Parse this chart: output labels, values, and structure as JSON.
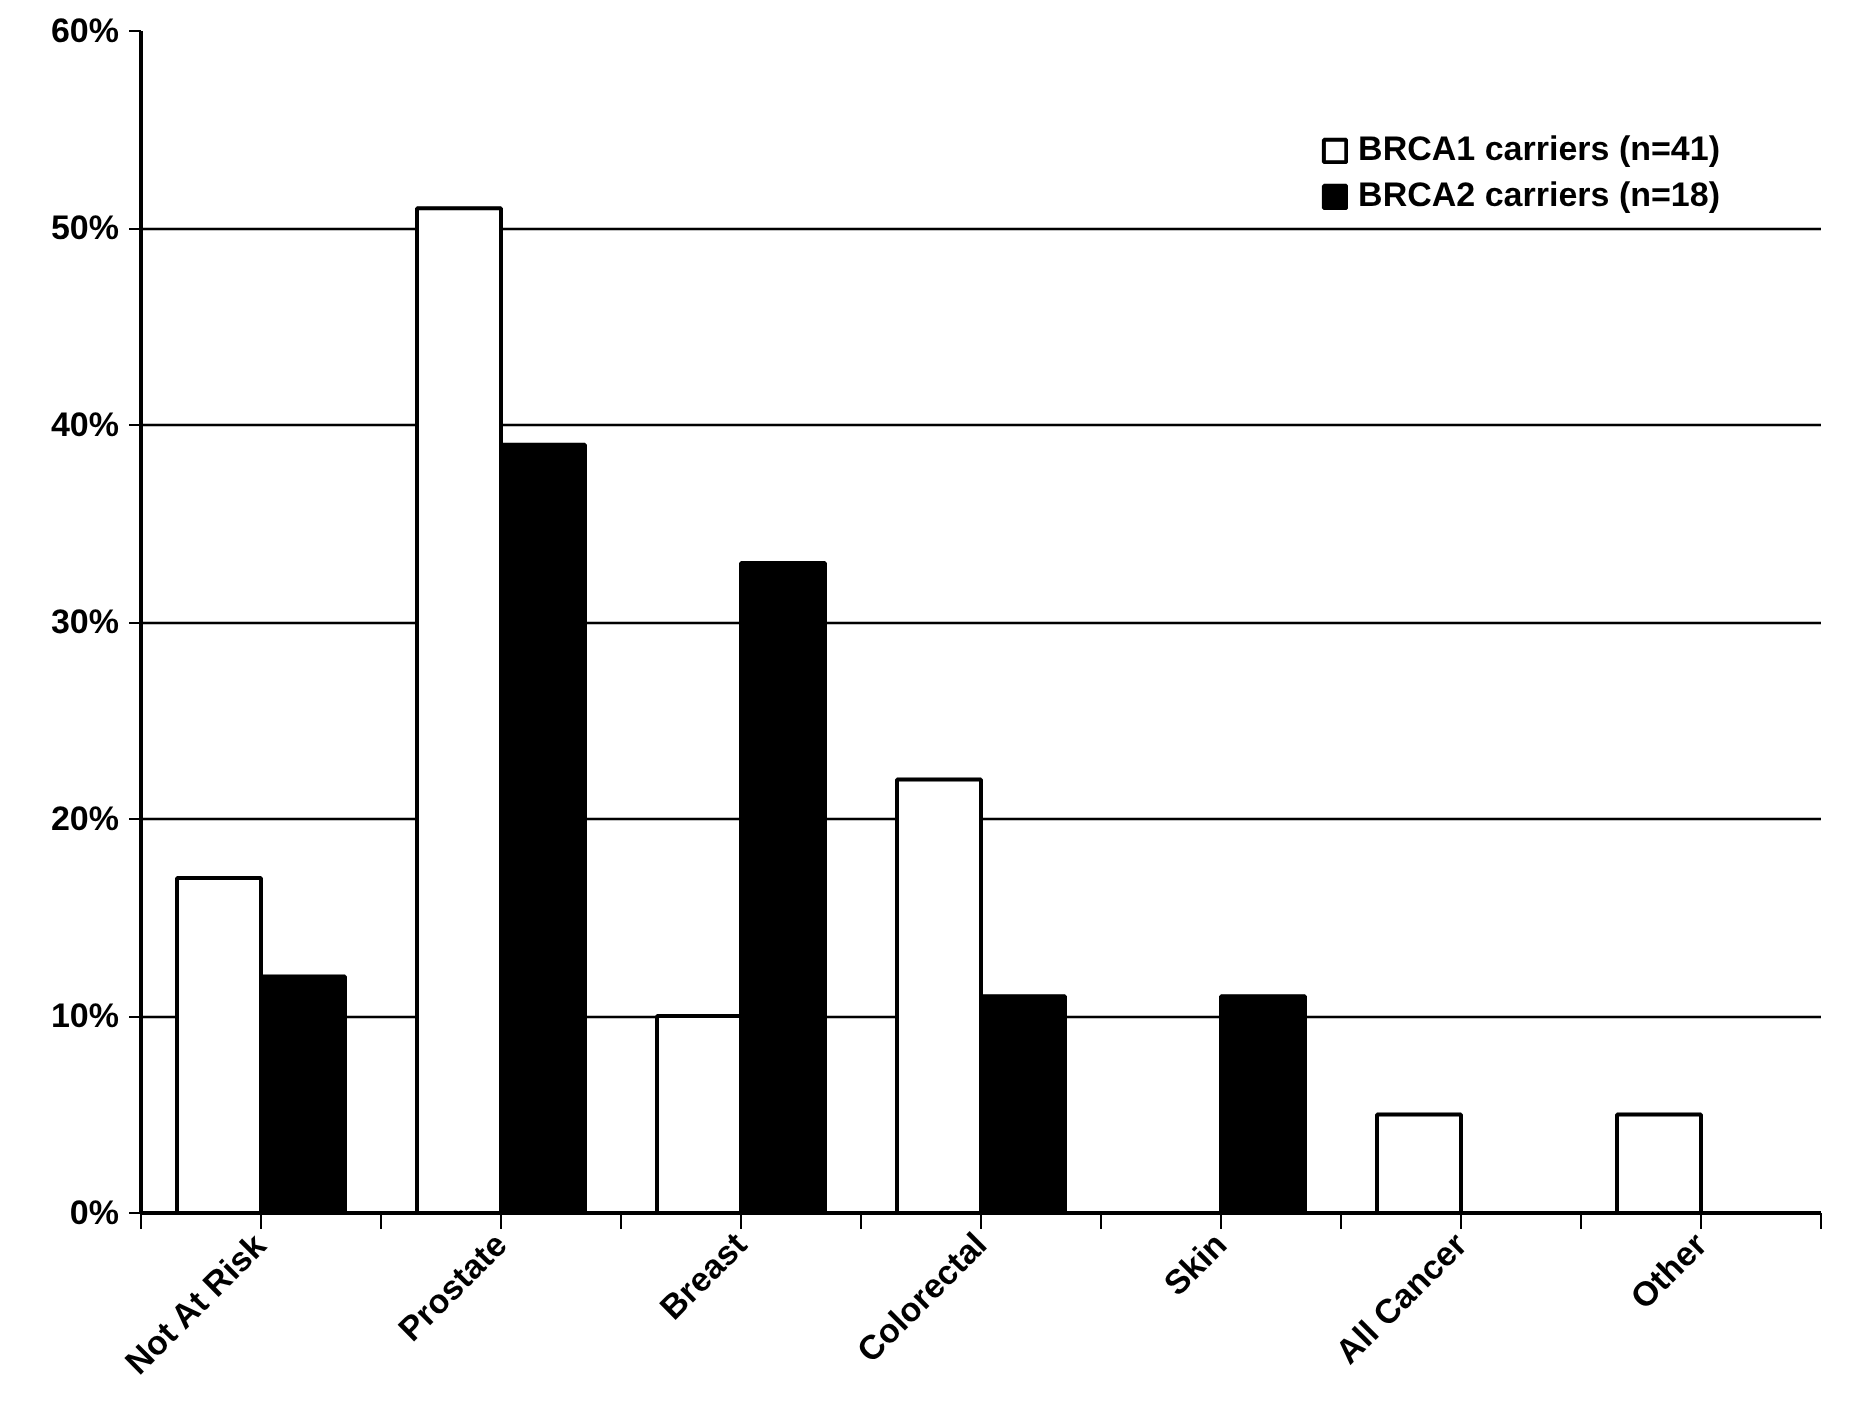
{
  "chart_data": {
    "type": "bar",
    "categories": [
      "Not At Risk",
      "Prostate",
      "Breast",
      "Colorectal",
      "Skin",
      "All Cancer",
      "Other"
    ],
    "series": [
      {
        "name": "BRCA1 carriers (n=41)",
        "color": "#ffffff",
        "values": [
          17,
          51,
          10,
          22,
          0,
          5,
          5
        ]
      },
      {
        "name": "BRCA2 carriers (n=18)",
        "color": "#000000",
        "values": [
          12,
          39,
          33,
          11,
          11,
          0,
          0
        ]
      }
    ],
    "ylim": [
      0,
      60
    ],
    "yticks": [
      {
        "value": 0,
        "label": "0%"
      },
      {
        "value": 10,
        "label": "10%"
      },
      {
        "value": 20,
        "label": "20%"
      },
      {
        "value": 30,
        "label": "30%"
      },
      {
        "value": 40,
        "label": "40%"
      },
      {
        "value": 50,
        "label": "50%"
      },
      {
        "value": 60,
        "label": "60%"
      }
    ],
    "grid": "y",
    "legend": "top right"
  }
}
